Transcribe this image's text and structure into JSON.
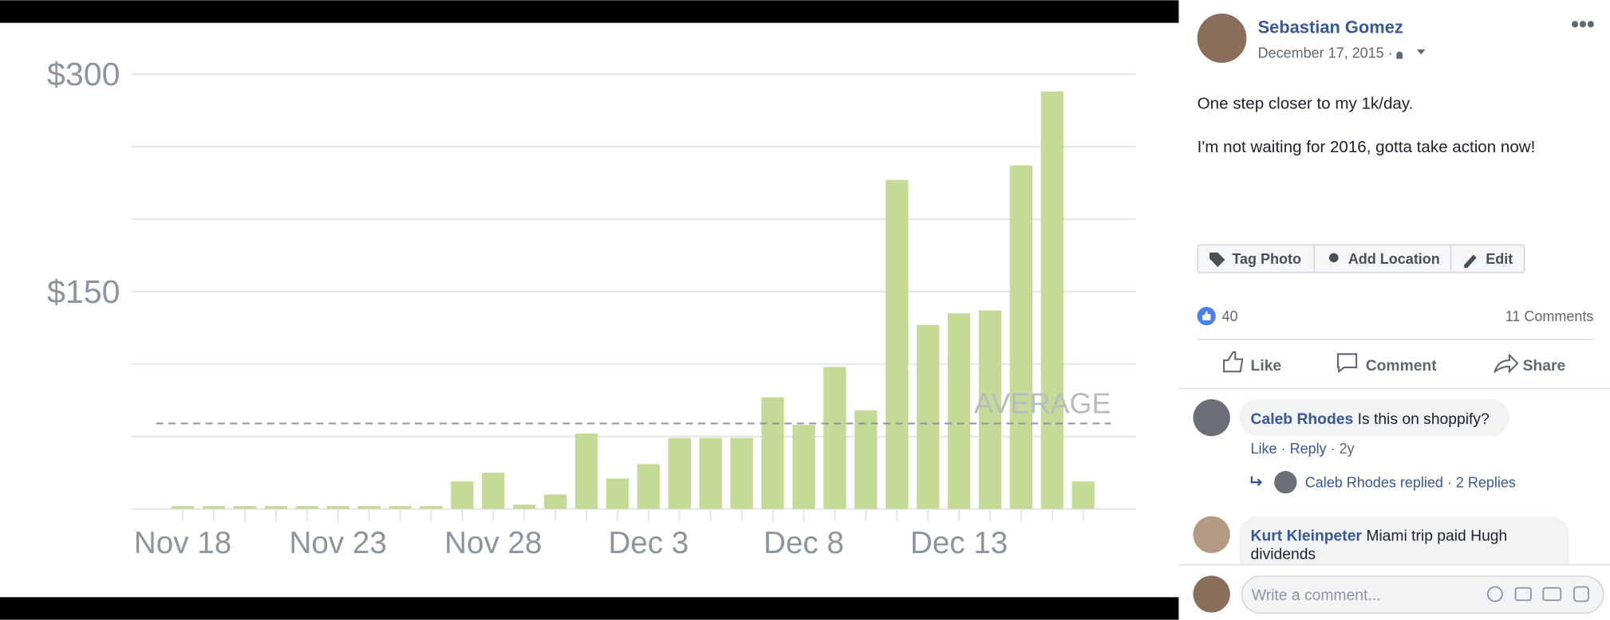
{
  "chart_data": {
    "type": "bar",
    "color": "#c5da96",
    "categories": [
      "Nov 18",
      null,
      null,
      null,
      null,
      "Nov 23",
      null,
      null,
      null,
      null,
      "Nov 28",
      null,
      null,
      null,
      null,
      "Dec 3",
      null,
      null,
      null,
      null,
      "Dec 8",
      null,
      null,
      null,
      null,
      "Dec 13",
      null,
      null,
      null,
      null
    ],
    "values": [
      2,
      2,
      2,
      2,
      2,
      2,
      2,
      2,
      2,
      19,
      25,
      3,
      10,
      52,
      21,
      31,
      49,
      49,
      49,
      77,
      58,
      98,
      68,
      227,
      127,
      135,
      137,
      237,
      288,
      19
    ],
    "ylim": [
      0,
      300
    ],
    "yticks": [
      {
        "value": 150,
        "label": "$150"
      },
      {
        "value": 300,
        "label": "$300"
      }
    ],
    "gridlines": [
      0,
      50,
      100,
      150,
      200,
      250,
      300
    ],
    "grid": true,
    "average": 59,
    "average_label": "AVERAGE"
  },
  "post": {
    "author": "Sebastian Gomez",
    "date": "December 17, 2015",
    "separator": "·",
    "text": [
      "One step closer to my 1k/day.",
      "I'm not waiting for 2016, gotta take action now!"
    ],
    "photo_actions": [
      "Tag Photo",
      "Add Location",
      "Edit"
    ],
    "reactions": 40,
    "comments_count": "11 Comments",
    "actions": [
      "Like",
      "Comment",
      "Share"
    ],
    "comments": [
      {
        "author": "Caleb Rhodes",
        "text": "Is this on shoppify?",
        "meta": [
          "Like",
          "Reply",
          "2y"
        ],
        "replied": "Caleb Rhodes replied",
        "replies": "2 Replies"
      },
      {
        "author": "Kurt Kleinpeter",
        "text": [
          "Miami trip paid Hugh",
          "dividends"
        ]
      }
    ],
    "placeholder": "Write a comment..."
  }
}
